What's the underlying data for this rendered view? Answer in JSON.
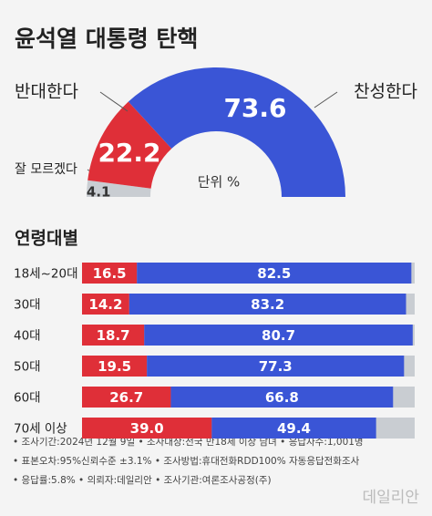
{
  "chart_data": [
    {
      "type": "pie",
      "title": "윤석열 대통령 탄핵",
      "subtitle": "단위 %",
      "categories": [
        "잘 모르겠다",
        "반대한다",
        "찬성한다"
      ],
      "values": [
        4.1,
        22.2,
        73.6
      ],
      "colors": [
        "#c9cdd2",
        "#df2f38",
        "#3a55d6"
      ]
    },
    {
      "type": "bar",
      "orientation": "horizontal",
      "stacked": true,
      "title": "연령대별",
      "categories": [
        "18세~20대",
        "30대",
        "40대",
        "50대",
        "60대",
        "70세 이상"
      ],
      "xlim": [
        0,
        100
      ],
      "series": [
        {
          "color": "#df2f38",
          "values": [
            16.5,
            14.2,
            18.7,
            19.5,
            26.7,
            39.0
          ],
          "value_labels": [
            "16.5",
            "14.2",
            "18.7",
            "19.5",
            "26.7",
            "39.0"
          ]
        },
        {
          "color": "#3a55d6",
          "values": [
            82.5,
            83.2,
            80.7,
            77.3,
            66.8,
            49.4
          ]
        }
      ],
      "track_color": "#c9cdd2"
    }
  ],
  "notes": [
    "• 조사기간:2024년 12월 9일 • 조사대상:전국 만18세 이상 남녀 • 응답자수:1,001명",
    "• 표본오차:95%신뢰수준 ±3.1% • 조사방법:휴대전화RDD100% 자동응답전화조사",
    "• 응답률:5.8% • 의뢰자:데일리안 • 조사기관:여론조사공정(주)"
  ],
  "watermark": "데일리안"
}
